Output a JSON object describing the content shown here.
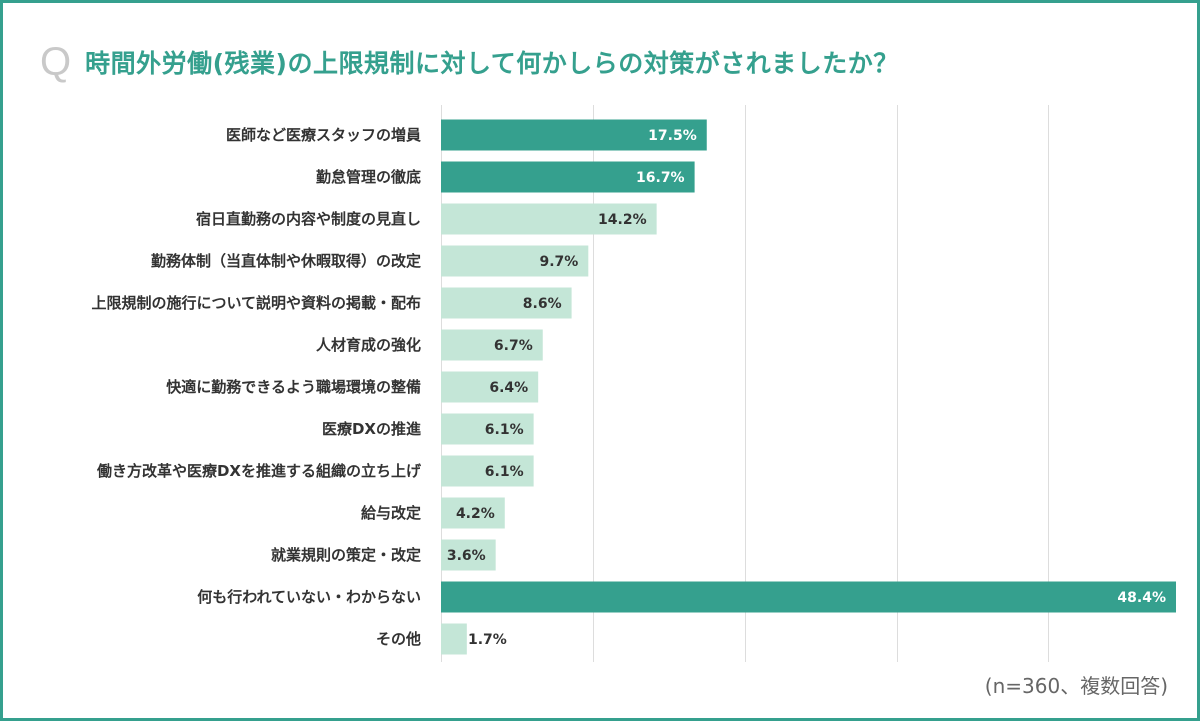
{
  "title": {
    "q_mark": "Q",
    "text": "時間外労働(残業)の上限規制に対して何かしらの対策がされましたか？"
  },
  "note": "(n=360、複数回答)",
  "colors": {
    "accent": "#35a08e",
    "light": "#c4e6d7",
    "grid": "#dddddd",
    "dark_text": "#333333",
    "white_text": "#ffffff"
  },
  "chart_data": {
    "type": "bar",
    "orientation": "horizontal",
    "title": "時間外労働(残業)の上限規制に対して何かしらの対策がされましたか？",
    "xlim": [
      0,
      50
    ],
    "gridlines": [
      10,
      20,
      30,
      40,
      50
    ],
    "categories": [
      "医師など医療スタッフの増員",
      "勤怠管理の徹底",
      "宿日直勤務の内容や制度の見直し",
      "勤務体制（当直体制や休暇取得）の改定",
      "上限規制の施行について説明や資料の掲載・配布",
      "人材育成の強化",
      "快適に勤務できるよう職場環境の整備",
      "医療DXの推進",
      "働き方改革や医療DXを推進する組織の立ち上げ",
      "給与改定",
      "就業規則の策定・改定",
      "何も行われていない・わからない",
      "その他"
    ],
    "values": [
      17.5,
      16.7,
      14.2,
      9.7,
      8.6,
      6.7,
      6.4,
      6.1,
      6.1,
      4.2,
      3.6,
      48.4,
      1.7
    ],
    "value_labels": [
      "17.5%",
      "16.7%",
      "14.2%",
      "9.7%",
      "8.6%",
      "6.7%",
      "6.4%",
      "6.1%",
      "6.1%",
      "4.2%",
      "3.6%",
      "48.4%",
      "1.7%"
    ],
    "highlight": [
      true,
      true,
      false,
      false,
      false,
      false,
      false,
      false,
      false,
      false,
      false,
      true,
      false
    ]
  }
}
